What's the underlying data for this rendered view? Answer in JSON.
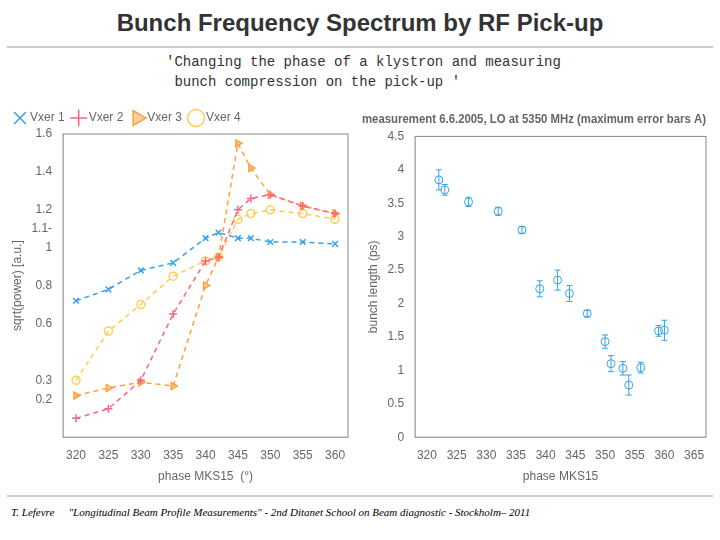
{
  "title": "Bunch Frequency Spectrum by RF Pick-up",
  "subtitle": [
    "'Changing the phase of a klystron and measuring",
    " bunch compression on the pick-up '"
  ],
  "annotations": [
    "T. Lefevre",
    "\"Longitudinal Beam Profile Measurements\" - 2nd Ditanet School on Beam diagnostic - Stockholm– 2011"
  ],
  "chart_data": [
    {
      "type": "line",
      "x_label": "phase MKS15  (°)",
      "y_label": "sqrt(power) [a.u.]",
      "x": [
        320,
        325,
        330,
        335,
        340,
        342,
        345,
        347,
        350,
        355,
        360
      ],
      "series": [
        {
          "name": "Vxer 1",
          "values": [
            0.72,
            0.78,
            0.88,
            0.92,
            1.05,
            1.08,
            1.05,
            1.05,
            1.03,
            1.03,
            1.02
          ],
          "marker": "x",
          "line_style": "dashed"
        },
        {
          "name": "Vxer 2",
          "values": [
            0.1,
            0.15,
            0.3,
            0.65,
            0.93,
            0.95,
            1.2,
            1.26,
            1.28,
            1.22,
            1.18
          ],
          "marker": "plus",
          "line_style": "dashed"
        },
        {
          "name": "Vxer 3",
          "values": [
            0.22,
            0.26,
            0.29,
            0.27,
            0.8,
            0.95,
            1.55,
            1.42,
            1.28,
            1.22,
            1.18
          ],
          "marker": "triangle_right",
          "line_style": "dashed"
        },
        {
          "name": "Vxer 4",
          "values": [
            0.3,
            0.56,
            0.7,
            0.85,
            0.93,
            0.95,
            1.15,
            1.18,
            1.2,
            1.18,
            1.15
          ],
          "marker": "circle",
          "line_style": "dashed"
        }
      ],
      "xlim": [
        318,
        362
      ],
      "xticks": [
        320,
        325,
        330,
        335,
        340,
        345,
        350,
        355,
        360
      ],
      "ylim": [
        0,
        1.6
      ],
      "yticks": [
        0.2,
        0.3,
        0.6,
        0.8,
        1,
        {
          "value": 1.1,
          "label": "1.1-"
        },
        1.2,
        1.4,
        1.6
      ],
      "grid": false,
      "legend": "upper left"
    },
    {
      "type": "scatter",
      "title": "measurement 6.6.2005, LO at 5350 MHz (maximum error bars A)",
      "x_label": "phase MKS15",
      "y_label": "bunch length (ps)",
      "x": [
        322,
        323,
        327,
        332,
        336,
        339,
        342,
        344,
        347,
        350,
        351,
        353,
        354,
        356,
        359,
        360
      ],
      "values": [
        3.85,
        3.7,
        3.52,
        3.38,
        3.1,
        2.22,
        2.35,
        2.15,
        1.85,
        1.43,
        1.1,
        1.03,
        0.78,
        1.04,
        1.59,
        1.6
      ],
      "errors": [
        0.15,
        0.08,
        0.07,
        0.06,
        0.05,
        0.12,
        0.15,
        0.12,
        0.05,
        0.1,
        0.12,
        0.1,
        0.15,
        0.08,
        0.08,
        0.15
      ],
      "marker": "circle",
      "xlim": [
        318,
        367
      ],
      "xticks": [
        320,
        325,
        330,
        335,
        340,
        345,
        350,
        355,
        360,
        365
      ],
      "ylim": [
        0,
        4.5
      ],
      "yticks": [
        0,
        0.5,
        1,
        1.5,
        2,
        2.5,
        3,
        3.5,
        4,
        4.5
      ],
      "grid": false
    }
  ]
}
